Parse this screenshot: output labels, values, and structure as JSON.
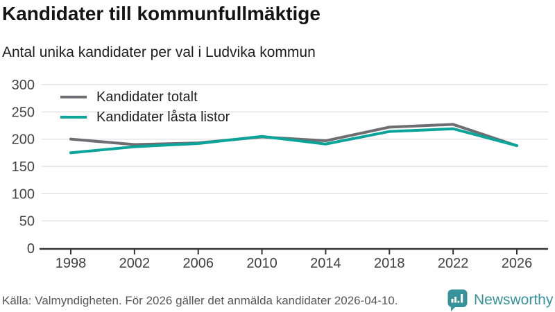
{
  "title": "Kandidater till kommunfullmäktige",
  "subtitle": "Antal unika kandidater per val i Ludvika kommun",
  "legend": {
    "items": [
      {
        "label": "Kandidater totalt",
        "color": "#6d6d72"
      },
      {
        "label": "Kandidater låsta listor",
        "color": "#0aa49b"
      }
    ]
  },
  "footer": {
    "source": "Källa: Valmyndigheten. För 2026 gäller det anmälda kandidater 2026-04-10.",
    "brand": "Newsworthy"
  },
  "colors": {
    "series_total": "#6d6d72",
    "series_locked": "#0aa49b",
    "grid": "#e2e2e2",
    "axis": "#333333",
    "tick_label": "#414141",
    "brand_teal": "#37939b"
  },
  "chart_data": {
    "type": "line",
    "x": [
      1998,
      2002,
      2006,
      2010,
      2014,
      2018,
      2022,
      2026
    ],
    "series": [
      {
        "name": "Kandidater totalt",
        "color": "#6d6d72",
        "values": [
          200,
          190,
          193,
          204,
          197,
          222,
          227,
          188
        ]
      },
      {
        "name": "Kandidater låsta listor",
        "color": "#0aa49b",
        "values": [
          175,
          186,
          192,
          205,
          191,
          214,
          219,
          188
        ]
      }
    ],
    "title": "Kandidater till kommunfullmäktige",
    "subtitle": "Antal unika kandidater per val i Ludvika kommun",
    "xlabel": "",
    "ylabel": "",
    "ylim": [
      0,
      300
    ],
    "yticks": [
      0,
      50,
      100,
      150,
      200,
      250,
      300
    ],
    "xticks": [
      1998,
      2002,
      2006,
      2010,
      2014,
      2018,
      2022,
      2026
    ],
    "grid": "horizontal",
    "legend_position": "top-left-inside"
  }
}
